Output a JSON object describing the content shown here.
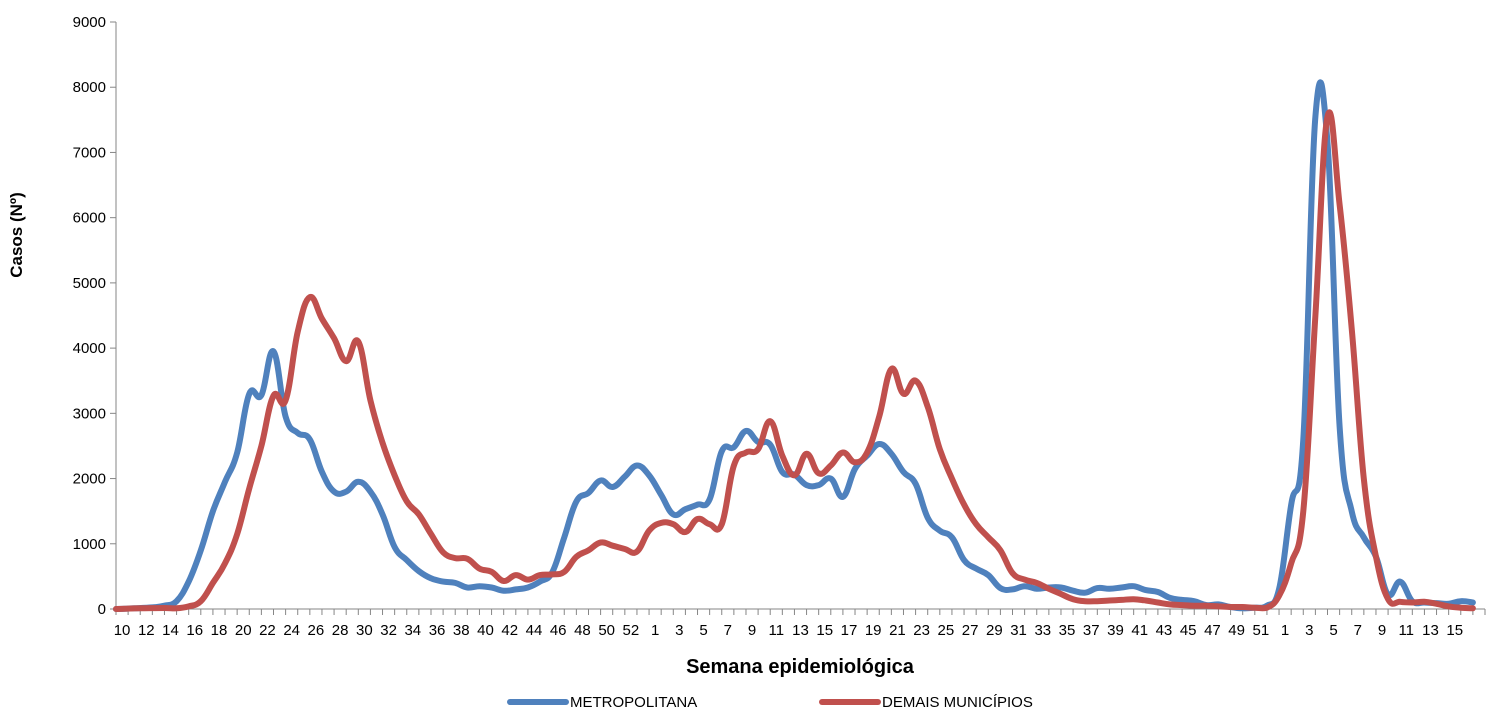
{
  "chart_data": {
    "type": "line",
    "title": "",
    "xlabel": "Semana epidemiológica",
    "ylabel": "Casos (Nº)",
    "ylim": [
      0,
      9000
    ],
    "yticks": [
      0,
      1000,
      2000,
      3000,
      4000,
      5000,
      6000,
      7000,
      8000,
      9000
    ],
    "grid": false,
    "legend": "bottom",
    "x_tick_labels": [
      "10",
      "12",
      "14",
      "16",
      "18",
      "20",
      "22",
      "24",
      "26",
      "28",
      "30",
      "32",
      "34",
      "36",
      "38",
      "40",
      "42",
      "44",
      "46",
      "48",
      "50",
      "52",
      "1",
      "3",
      "5",
      "7",
      "9",
      "11",
      "13",
      "15",
      "17",
      "19",
      "21",
      "23",
      "25",
      "27",
      "29",
      "31",
      "33",
      "35",
      "37",
      "39",
      "41",
      "43",
      "45",
      "47",
      "49",
      "51",
      "1",
      "3",
      "5",
      "7",
      "9",
      "11",
      "13",
      "15"
    ],
    "series": [
      {
        "name": "METROPOLITANA",
        "color": "#4F81BD",
        "points": [
          [
            0,
            0
          ],
          [
            1.5,
            10
          ],
          [
            3,
            25
          ],
          [
            4,
            50
          ],
          [
            5,
            120
          ],
          [
            6,
            420
          ],
          [
            7,
            900
          ],
          [
            8,
            1500
          ],
          [
            9,
            1950
          ],
          [
            10,
            2400
          ],
          [
            11,
            3300
          ],
          [
            12,
            3280
          ],
          [
            13,
            3950
          ],
          [
            14,
            2950
          ],
          [
            15,
            2700
          ],
          [
            16,
            2600
          ],
          [
            17,
            2100
          ],
          [
            18,
            1800
          ],
          [
            19,
            1800
          ],
          [
            20,
            1950
          ],
          [
            21,
            1800
          ],
          [
            22,
            1450
          ],
          [
            23,
            950
          ],
          [
            24,
            750
          ],
          [
            25,
            580
          ],
          [
            26,
            470
          ],
          [
            27,
            420
          ],
          [
            28,
            400
          ],
          [
            29,
            330
          ],
          [
            30,
            350
          ],
          [
            31,
            330
          ],
          [
            32,
            280
          ],
          [
            33,
            300
          ],
          [
            34,
            330
          ],
          [
            35,
            420
          ],
          [
            36,
            560
          ],
          [
            37,
            1100
          ],
          [
            38,
            1650
          ],
          [
            39,
            1780
          ],
          [
            40,
            1970
          ],
          [
            41,
            1870
          ],
          [
            42,
            2030
          ],
          [
            43,
            2200
          ],
          [
            44,
            2050
          ],
          [
            45,
            1750
          ],
          [
            46,
            1450
          ],
          [
            47,
            1530
          ],
          [
            48,
            1600
          ],
          [
            49,
            1680
          ],
          [
            50,
            2420
          ],
          [
            51,
            2480
          ],
          [
            52,
            2730
          ],
          [
            53,
            2560
          ],
          [
            54,
            2520
          ],
          [
            55,
            2100
          ],
          [
            56,
            2060
          ],
          [
            57,
            1900
          ],
          [
            58,
            1900
          ],
          [
            59,
            2000
          ],
          [
            60,
            1720
          ],
          [
            61,
            2150
          ],
          [
            62,
            2350
          ],
          [
            63,
            2530
          ],
          [
            64,
            2380
          ],
          [
            65,
            2100
          ],
          [
            66,
            1920
          ],
          [
            67,
            1400
          ],
          [
            68,
            1200
          ],
          [
            69,
            1100
          ],
          [
            70,
            750
          ],
          [
            71,
            620
          ],
          [
            72,
            520
          ],
          [
            73,
            320
          ],
          [
            74,
            300
          ],
          [
            75,
            350
          ],
          [
            76,
            310
          ],
          [
            77,
            330
          ],
          [
            78,
            330
          ],
          [
            79,
            280
          ],
          [
            80,
            250
          ],
          [
            81,
            320
          ],
          [
            82,
            310
          ],
          [
            83,
            330
          ],
          [
            84,
            350
          ],
          [
            85,
            290
          ],
          [
            86,
            260
          ],
          [
            87,
            170
          ],
          [
            88,
            140
          ],
          [
            89,
            120
          ],
          [
            90,
            60
          ],
          [
            91,
            70
          ],
          [
            92,
            30
          ],
          [
            93,
            10
          ],
          [
            94,
            20
          ],
          [
            95,
            50
          ],
          [
            96,
            300
          ],
          [
            97,
            1600
          ],
          [
            98,
            2600
          ],
          [
            99,
            7550
          ],
          [
            100,
            7150
          ],
          [
            101,
            2800
          ],
          [
            102,
            1500
          ],
          [
            103,
            1100
          ],
          [
            104,
            800
          ],
          [
            105,
            220
          ],
          [
            106,
            420
          ],
          [
            107,
            120
          ],
          [
            108,
            100
          ],
          [
            109,
            90
          ],
          [
            110,
            80
          ],
          [
            111,
            120
          ],
          [
            112,
            100
          ]
        ]
      },
      {
        "name": "DEMAIS MUNICÍPIOS",
        "color": "#C0504D",
        "points": [
          [
            0,
            0
          ],
          [
            2,
            10
          ],
          [
            4,
            15
          ],
          [
            5,
            10
          ],
          [
            6,
            40
          ],
          [
            7,
            120
          ],
          [
            8,
            400
          ],
          [
            9,
            700
          ],
          [
            10,
            1150
          ],
          [
            11,
            1850
          ],
          [
            12,
            2500
          ],
          [
            13,
            3270
          ],
          [
            14,
            3200
          ],
          [
            15,
            4250
          ],
          [
            16,
            4780
          ],
          [
            17,
            4450
          ],
          [
            18,
            4150
          ],
          [
            19,
            3800
          ],
          [
            20,
            4100
          ],
          [
            21,
            3200
          ],
          [
            22,
            2550
          ],
          [
            23,
            2050
          ],
          [
            24,
            1650
          ],
          [
            25,
            1450
          ],
          [
            26,
            1150
          ],
          [
            27,
            870
          ],
          [
            28,
            780
          ],
          [
            29,
            770
          ],
          [
            30,
            620
          ],
          [
            31,
            570
          ],
          [
            32,
            430
          ],
          [
            33,
            520
          ],
          [
            34,
            450
          ],
          [
            35,
            520
          ],
          [
            36,
            530
          ],
          [
            37,
            570
          ],
          [
            38,
            800
          ],
          [
            39,
            900
          ],
          [
            40,
            1020
          ],
          [
            41,
            970
          ],
          [
            42,
            920
          ],
          [
            43,
            880
          ],
          [
            44,
            1200
          ],
          [
            45,
            1320
          ],
          [
            46,
            1300
          ],
          [
            47,
            1180
          ],
          [
            48,
            1380
          ],
          [
            49,
            1300
          ],
          [
            50,
            1300
          ],
          [
            51,
            2200
          ],
          [
            52,
            2400
          ],
          [
            53,
            2450
          ],
          [
            54,
            2880
          ],
          [
            55,
            2350
          ],
          [
            56,
            2050
          ],
          [
            57,
            2380
          ],
          [
            58,
            2080
          ],
          [
            59,
            2200
          ],
          [
            60,
            2400
          ],
          [
            61,
            2250
          ],
          [
            62,
            2400
          ],
          [
            63,
            2950
          ],
          [
            64,
            3680
          ],
          [
            65,
            3300
          ],
          [
            66,
            3500
          ],
          [
            67,
            3100
          ],
          [
            68,
            2450
          ],
          [
            69,
            2000
          ],
          [
            70,
            1600
          ],
          [
            71,
            1300
          ],
          [
            72,
            1100
          ],
          [
            73,
            900
          ],
          [
            74,
            550
          ],
          [
            75,
            450
          ],
          [
            76,
            400
          ],
          [
            77,
            310
          ],
          [
            78,
            230
          ],
          [
            79,
            150
          ],
          [
            80,
            120
          ],
          [
            81,
            120
          ],
          [
            82,
            130
          ],
          [
            83,
            140
          ],
          [
            84,
            150
          ],
          [
            85,
            130
          ],
          [
            86,
            100
          ],
          [
            87,
            70
          ],
          [
            88,
            60
          ],
          [
            89,
            50
          ],
          [
            90,
            50
          ],
          [
            91,
            40
          ],
          [
            92,
            30
          ],
          [
            93,
            30
          ],
          [
            94,
            20
          ],
          [
            95,
            20
          ],
          [
            96,
            200
          ],
          [
            97,
            700
          ],
          [
            98,
            1500
          ],
          [
            99,
            4500
          ],
          [
            100,
            7550
          ],
          [
            101,
            6200
          ],
          [
            102,
            4300
          ],
          [
            103,
            2000
          ],
          [
            104,
            800
          ],
          [
            105,
            150
          ],
          [
            106,
            110
          ],
          [
            107,
            100
          ],
          [
            108,
            110
          ],
          [
            109,
            80
          ],
          [
            110,
            40
          ],
          [
            111,
            20
          ],
          [
            112,
            10
          ]
        ]
      }
    ]
  }
}
